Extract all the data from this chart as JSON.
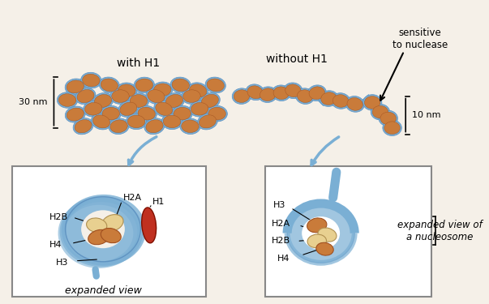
{
  "bg_color": "#f5f0e8",
  "dna_blue": "#7aafd4",
  "dna_blue_dark": "#5b8fbf",
  "nucleosome_fill": "#c97b3a",
  "nucleosome_outer": "#e8a060",
  "histone_core_yellow": "#e8d090",
  "h1_red": "#c03020",
  "title_font": 10,
  "label_font": 9,
  "with_h1_label": "with H1",
  "without_h1_label": "without H1",
  "sensitive_label": "sensitive\nto nuclease",
  "nm30_label": "30 nm",
  "nm10_label": "10 nm",
  "expanded_view_label": "expanded view",
  "expanded_view_nucl_label": "expanded view of\na nucleosome",
  "h2a_label": "H2A",
  "h2b_label": "H2B",
  "h3_label": "H3",
  "h4_label": "H4",
  "h1_label": "H1",
  "h3b_label": "H3",
  "h2a_b_label": "H2A",
  "h2b_b_label": "H2B",
  "h4b_label": "H4"
}
